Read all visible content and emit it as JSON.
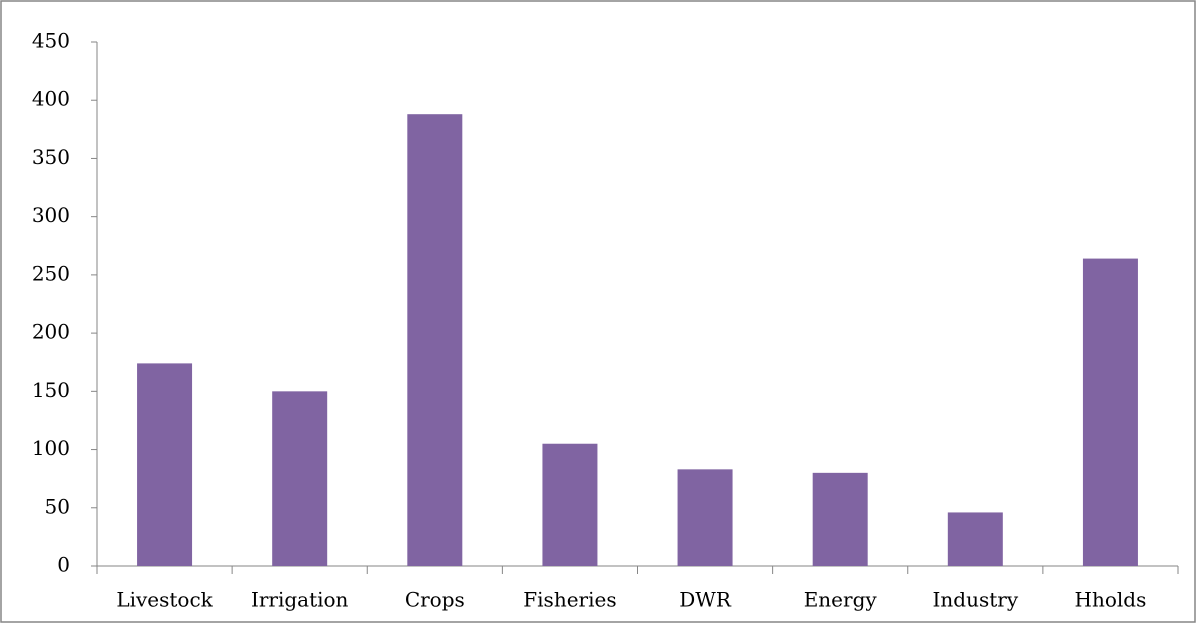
{
  "chart_data": {
    "type": "bar",
    "categories": [
      "Livestock",
      "Irrigation",
      "Crops",
      "Fisheries",
      "DWR",
      "Energy",
      "Industry",
      "Hholds"
    ],
    "values": [
      174,
      150,
      388,
      105,
      83,
      80,
      46,
      264
    ],
    "color": "#8064a2",
    "ylim": [
      0,
      450
    ],
    "yticks": [
      0,
      50,
      100,
      150,
      200,
      250,
      300,
      350,
      400,
      450
    ],
    "grid": false
  }
}
